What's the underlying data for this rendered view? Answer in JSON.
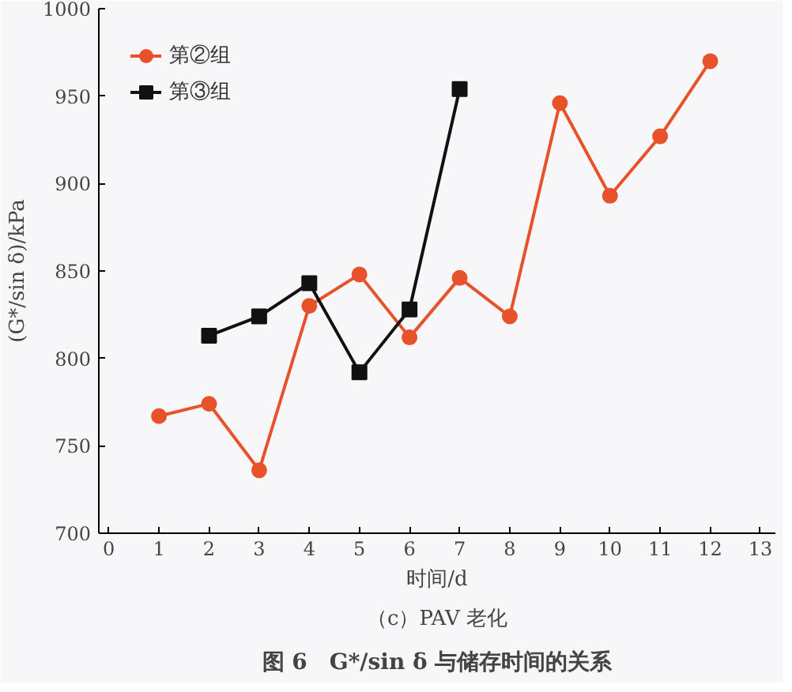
{
  "chart_data": {
    "type": "line",
    "title": "图 6　G*/sin δ 与储存时间的关系",
    "subtitle": "（c）PAV 老化",
    "xlabel": "时间/d",
    "ylabel": "(G*/sin δ)/kPa",
    "xlim": [
      -0.2,
      13.3
    ],
    "xticks": [
      0,
      1,
      2,
      3,
      4,
      5,
      6,
      7,
      8,
      9,
      10,
      11,
      12,
      13
    ],
    "ylim": [
      700,
      1000
    ],
    "yticks": [
      700,
      750,
      800,
      850,
      900,
      950,
      1000
    ],
    "grid": false,
    "legend": "top left",
    "series": [
      {
        "name": "第②组",
        "color": "#e8522a",
        "marker": "circle",
        "x": [
          1,
          2,
          3,
          4,
          5,
          6,
          7,
          8,
          9,
          10,
          11,
          12
        ],
        "values": [
          767,
          774,
          736,
          830,
          848,
          812,
          846,
          824,
          946,
          893,
          927,
          970
        ]
      },
      {
        "name": "第③组",
        "color": "#111111",
        "marker": "square",
        "x": [
          2,
          3,
          4,
          5,
          6,
          7
        ],
        "values": [
          813,
          824,
          843,
          792,
          828,
          954
        ]
      }
    ]
  }
}
